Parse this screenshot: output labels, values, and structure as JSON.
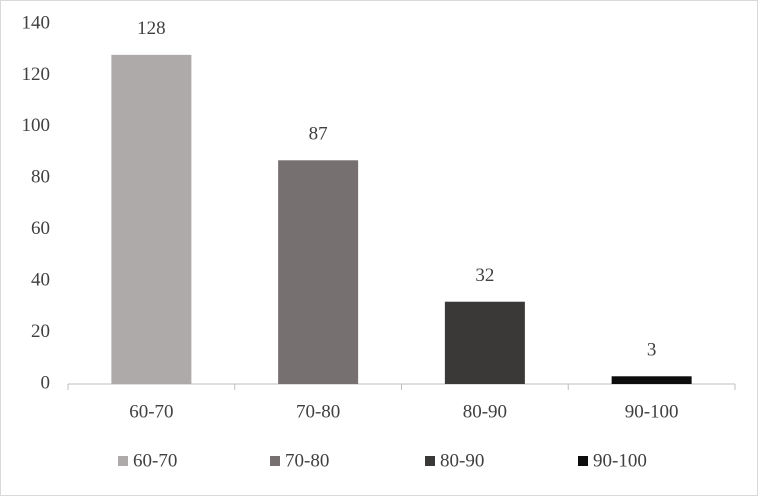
{
  "chart_data": {
    "type": "bar",
    "categories": [
      "60-70",
      "70-80",
      "80-90",
      "90-100"
    ],
    "values": [
      128,
      87,
      32,
      3
    ],
    "colors": [
      "#aeaaa9",
      "#767170",
      "#3b3838",
      "#0d0d0d"
    ],
    "ylim": [
      0,
      140
    ],
    "yticks": [
      0,
      20,
      40,
      60,
      80,
      100,
      120,
      140
    ],
    "grid": false,
    "legend": "bottom"
  }
}
